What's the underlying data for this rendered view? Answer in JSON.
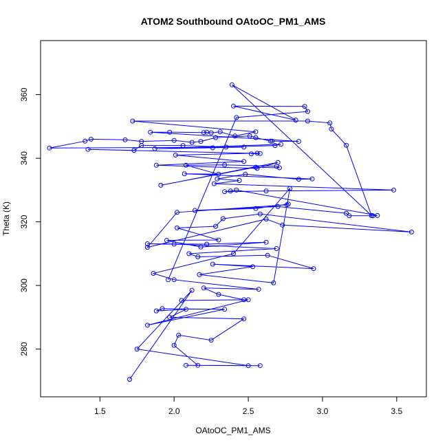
{
  "chart_data": {
    "type": "line",
    "title": "ATOM2 Southbound OAtoOC_PM1_AMS",
    "xlabel": "OAtoOC_PM1_AMS",
    "ylabel": "Theta (K)",
    "xlim": [
      1.1,
      3.7
    ],
    "ylim": [
      265,
      377
    ],
    "xticks": [
      1.5,
      2.0,
      2.5,
      3.0,
      3.5
    ],
    "yticks": [
      280,
      300,
      320,
      340,
      360
    ],
    "xtick_labels": [
      "1.5",
      "2.0",
      "2.5",
      "3.0",
      "3.5"
    ],
    "ytick_labels": [
      "280",
      "300",
      "320",
      "340",
      "360"
    ],
    "grid": false,
    "marker": "open-circle",
    "color": "#0000ff",
    "series": [
      {
        "points": [
          [
            1.7,
            270.5
          ],
          [
            2.12,
            298.5
          ],
          [
            1.75,
            280.0
          ],
          [
            2.5,
            274.8
          ],
          [
            2.08,
            274.9
          ],
          [
            2.58,
            274.8
          ],
          [
            2.16,
            274.9
          ],
          [
            2.0,
            281.2
          ],
          [
            2.03,
            284.4
          ],
          [
            2.25,
            282.8
          ],
          [
            2.47,
            289.5
          ],
          [
            1.97,
            290.0
          ],
          [
            2.08,
            292.5
          ],
          [
            1.88,
            292.0
          ],
          [
            1.92,
            292.7
          ],
          [
            2.34,
            292.5
          ],
          [
            1.82,
            287.5
          ],
          [
            2.5,
            295.5
          ],
          [
            2.05,
            295.3
          ],
          [
            2.47,
            295.5
          ],
          [
            2.3,
            297.2
          ],
          [
            2.2,
            299.2
          ],
          [
            2.57,
            298.8
          ],
          [
            2.0,
            301.8
          ],
          [
            1.86,
            303.8
          ],
          [
            2.4,
            310.0
          ],
          [
            2.78,
            330.5
          ],
          [
            2.67,
            300.8
          ],
          [
            2.17,
            303.4
          ],
          [
            2.53,
            305.9
          ],
          [
            2.26,
            306.7
          ],
          [
            2.94,
            305.3
          ],
          [
            2.63,
            309.5
          ],
          [
            2.16,
            309.0
          ],
          [
            2.1,
            310.0
          ],
          [
            2.69,
            311.6
          ],
          [
            2.0,
            313.0
          ],
          [
            1.82,
            313.1
          ],
          [
            2.22,
            313.0
          ],
          [
            2.62,
            313.6
          ],
          [
            2.18,
            312.1
          ],
          [
            1.95,
            314.2
          ],
          [
            2.3,
            314.3
          ],
          [
            2.02,
            318.1
          ],
          [
            2.28,
            318.6
          ],
          [
            2.33,
            321.0
          ],
          [
            2.58,
            322.5
          ],
          [
            3.6,
            316.8
          ],
          [
            2.73,
            319.0
          ],
          [
            2.62,
            320.9
          ],
          [
            1.82,
            312.0
          ],
          [
            2.02,
            323.0
          ],
          [
            2.76,
            325.4
          ],
          [
            2.77,
            325.6
          ],
          [
            2.55,
            324.2
          ],
          [
            2.14,
            323.6
          ],
          [
            2.7,
            324.8
          ],
          [
            3.16,
            322.7
          ],
          [
            3.18,
            321.9
          ],
          [
            3.34,
            321.9
          ],
          [
            3.37,
            322.0
          ],
          [
            2.42,
            330.0
          ],
          [
            2.38,
            329.7
          ],
          [
            2.34,
            329.5
          ],
          [
            2.62,
            329.7
          ],
          [
            3.48,
            330.0
          ],
          [
            2.27,
            332.0
          ],
          [
            2.44,
            333.0
          ],
          [
            2.29,
            333.5
          ],
          [
            2.48,
            335.0
          ],
          [
            2.84,
            333.4
          ],
          [
            2.93,
            333.5
          ],
          [
            2.07,
            335.1
          ],
          [
            2.3,
            335.0
          ],
          [
            2.08,
            337.8
          ],
          [
            2.34,
            337.9
          ],
          [
            2.69,
            337.5
          ],
          [
            2.71,
            337.0
          ],
          [
            2.55,
            337.2
          ],
          [
            1.91,
            331.5
          ],
          [
            2.7,
            338.7
          ],
          [
            2.56,
            336.8
          ],
          [
            1.88,
            337.8
          ],
          [
            2.47,
            339.0
          ],
          [
            2.01,
            341.0
          ],
          [
            2.56,
            341.6
          ],
          [
            2.52,
            341.4
          ],
          [
            2.58,
            341.5
          ],
          [
            1.42,
            342.8
          ],
          [
            1.73,
            342.5
          ],
          [
            1.78,
            344.0
          ],
          [
            2.06,
            344.0
          ],
          [
            2.35,
            343.5
          ],
          [
            2.68,
            344.0
          ],
          [
            2.72,
            344.4
          ],
          [
            1.87,
            343.0
          ],
          [
            2.26,
            343.3
          ],
          [
            2.47,
            343.5
          ],
          [
            1.16,
            343.2
          ],
          [
            1.4,
            345.4
          ],
          [
            1.44,
            346.0
          ],
          [
            1.67,
            345.8
          ],
          [
            1.78,
            345.3
          ],
          [
            2.0,
            345.6
          ],
          [
            2.12,
            345.0
          ],
          [
            2.18,
            345.3
          ],
          [
            2.28,
            346.5
          ],
          [
            2.51,
            347.0
          ],
          [
            2.55,
            346.5
          ],
          [
            2.65,
            345.4
          ],
          [
            2.66,
            345.4
          ],
          [
            2.84,
            345.3
          ],
          [
            1.84,
            348.2
          ],
          [
            1.97,
            348.2
          ],
          [
            2.2,
            348.1
          ],
          [
            2.22,
            348.2
          ],
          [
            2.25,
            348.0
          ],
          [
            2.31,
            348.3
          ],
          [
            2.41,
            347.0
          ],
          [
            2.55,
            348.3
          ],
          [
            1.72,
            351.7
          ],
          [
            2.9,
            351.7
          ],
          [
            3.05,
            351.1
          ],
          [
            3.06,
            349.2
          ],
          [
            3.16,
            344.1
          ],
          [
            3.33,
            322.0
          ],
          [
            2.39,
            363.1
          ],
          [
            2.82,
            352.0
          ],
          [
            2.4,
            356.4
          ],
          [
            2.88,
            356.3
          ],
          [
            2.9,
            354.7
          ],
          [
            2.42,
            352.8
          ],
          [
            1.96,
            301.8
          ]
        ]
      }
    ]
  }
}
